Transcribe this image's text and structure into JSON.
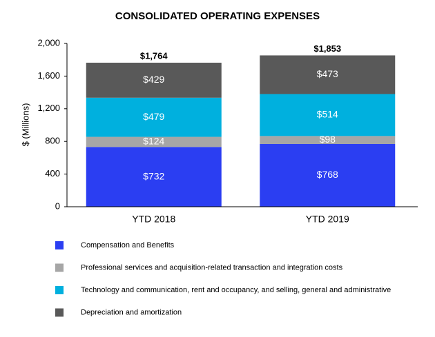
{
  "chart_data": {
    "type": "stacked-bar",
    "title": "CONSOLIDATED OPERATING EXPENSES",
    "y_label": "$ (Millions)",
    "categories": [
      "YTD 2018",
      "YTD 2019"
    ],
    "series": [
      {
        "name": "Compensation and Benefits",
        "color": "#2b3ef2",
        "values": [
          732,
          768
        ],
        "value_labels": [
          "$732",
          "$768"
        ]
      },
      {
        "name": "Professional services and acquisition-related transaction and integration costs",
        "color": "#a6a6a6",
        "values": [
          124,
          98
        ],
        "value_labels": [
          "$124",
          "$98"
        ]
      },
      {
        "name": "Technology and communication, rent and occupancy, and selling, general and administrative",
        "color": "#00b0de",
        "values": [
          479,
          514
        ],
        "value_labels": [
          "$479",
          "$514"
        ]
      },
      {
        "name": "Depreciation and amortization",
        "color": "#595959",
        "values": [
          429,
          473
        ],
        "value_labels": [
          "$429",
          "$473"
        ]
      }
    ],
    "totals": [
      1764,
      1853
    ],
    "total_labels": [
      "$1,764",
      "$1,853"
    ],
    "ylim": [
      0,
      2000
    ],
    "yticks": [
      0,
      400,
      800,
      {
        "value": 1200,
        "label": "1,200"
      },
      {
        "value": 1600,
        "label": "1,600"
      },
      {
        "value": 2000,
        "label": "2,000"
      }
    ],
    "grid": false
  }
}
